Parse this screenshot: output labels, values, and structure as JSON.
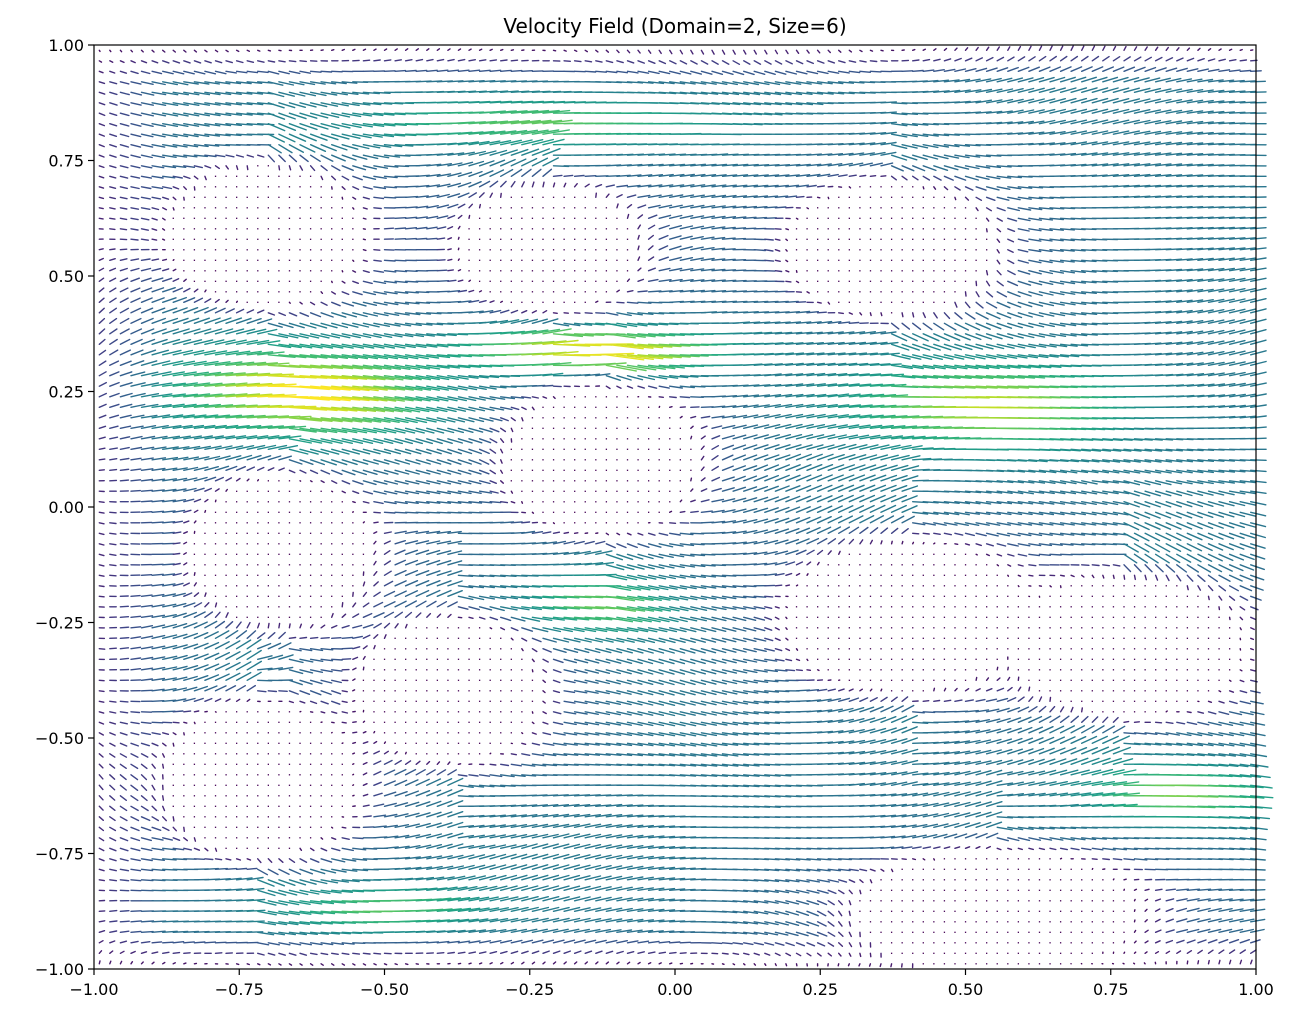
{
  "chart_data": {
    "type": "quiver",
    "title": "Velocity Field (Domain=2, Size=6)",
    "xlabel": "",
    "ylabel": "",
    "xlim": [
      -1.0,
      1.0
    ],
    "ylim": [
      -1.0,
      1.0
    ],
    "grid": false,
    "colormap": "viridis",
    "x_ticks": [
      "−1.00",
      "−0.75",
      "−0.50",
      "−0.25",
      "0.00",
      "0.25",
      "0.50",
      "0.75",
      "1.00"
    ],
    "y_ticks": [
      "−1.00",
      "−0.75",
      "−0.50",
      "−0.25",
      "0.00",
      "0.25",
      "0.50",
      "0.75",
      "1.00"
    ],
    "x_tick_values": [
      -1.0,
      -0.75,
      -0.5,
      -0.25,
      0.0,
      0.25,
      0.5,
      0.75,
      1.0
    ],
    "y_tick_values": [
      -1.0,
      -0.75,
      -0.5,
      -0.25,
      0.0,
      0.25,
      0.5,
      0.75,
      1.0
    ],
    "obstacles": [
      {
        "cx": -0.71,
        "cy": 0.59,
        "rx": 0.16,
        "ry": 0.15
      },
      {
        "cx": -0.22,
        "cy": 0.56,
        "rx": 0.15,
        "ry": 0.13
      },
      {
        "cx": 0.37,
        "cy": 0.56,
        "rx": 0.17,
        "ry": 0.14
      },
      {
        "cx": -0.13,
        "cy": 0.1,
        "rx": 0.16,
        "ry": 0.15
      },
      {
        "cx": -0.68,
        "cy": -0.1,
        "rx": 0.15,
        "ry": 0.16
      },
      {
        "cx": -0.39,
        "cy": -0.4,
        "rx": 0.15,
        "ry": 0.15
      },
      {
        "cx": -0.72,
        "cy": -0.59,
        "rx": 0.16,
        "ry": 0.16
      },
      {
        "cx": 0.4,
        "cy": -0.24,
        "rx": 0.2,
        "ry": 0.16
      },
      {
        "cx": 0.77,
        "cy": -0.3,
        "rx": 0.2,
        "ry": 0.15
      },
      {
        "cx": 0.55,
        "cy": -0.88,
        "rx": 0.24,
        "ry": 0.13
      }
    ],
    "jets": [
      {
        "x": -0.66,
        "y": 0.25,
        "sx": 0.2,
        "sy": 0.09,
        "strength": 1.0
      },
      {
        "x": -0.15,
        "y": 0.34,
        "sx": 0.22,
        "sy": 0.05,
        "strength": 0.95
      },
      {
        "x": 0.52,
        "y": 0.22,
        "sx": 0.22,
        "sy": 0.09,
        "strength": 0.8
      },
      {
        "x": -0.15,
        "y": -0.21,
        "sx": 0.12,
        "sy": 0.06,
        "strength": 0.6
      },
      {
        "x": 0.85,
        "y": -0.62,
        "sx": 0.15,
        "sy": 0.06,
        "strength": 0.65
      },
      {
        "x": -0.52,
        "y": -0.87,
        "sx": 0.16,
        "sy": 0.05,
        "strength": 0.55
      },
      {
        "x": -0.25,
        "y": 0.83,
        "sx": 0.3,
        "sy": 0.05,
        "strength": 0.55
      }
    ]
  }
}
